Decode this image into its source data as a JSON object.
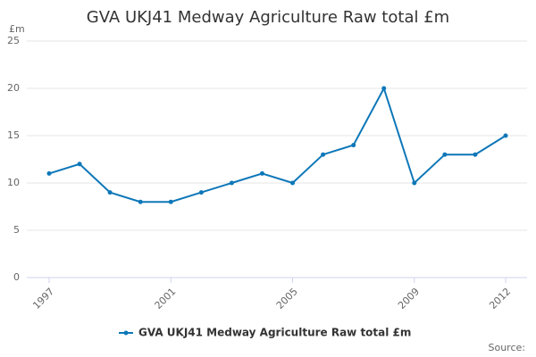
{
  "chart_data": {
    "type": "line",
    "title": "GVA UKJ41 Medway Agriculture Raw total £m",
    "y_label": "£m",
    "source": "Source:",
    "x": [
      1997,
      1998,
      1999,
      2000,
      2001,
      2002,
      2003,
      2004,
      2005,
      2006,
      2007,
      2008,
      2009,
      2010,
      2011,
      2012
    ],
    "series": [
      {
        "name": "GVA UKJ41 Medway Agriculture Raw total £m",
        "color": "#0d77b8",
        "values": [
          11,
          12,
          9,
          8,
          8,
          9,
          10,
          11,
          10,
          13,
          14,
          20,
          10,
          13,
          13,
          15
        ]
      }
    ],
    "xlim": [
      1997,
      2012
    ],
    "xticks": [
      1997,
      2001,
      2005,
      2009,
      2012
    ],
    "ylim": [
      0,
      25
    ],
    "yticks": [
      0,
      5,
      10,
      15,
      20,
      25
    ],
    "grid": true
  }
}
